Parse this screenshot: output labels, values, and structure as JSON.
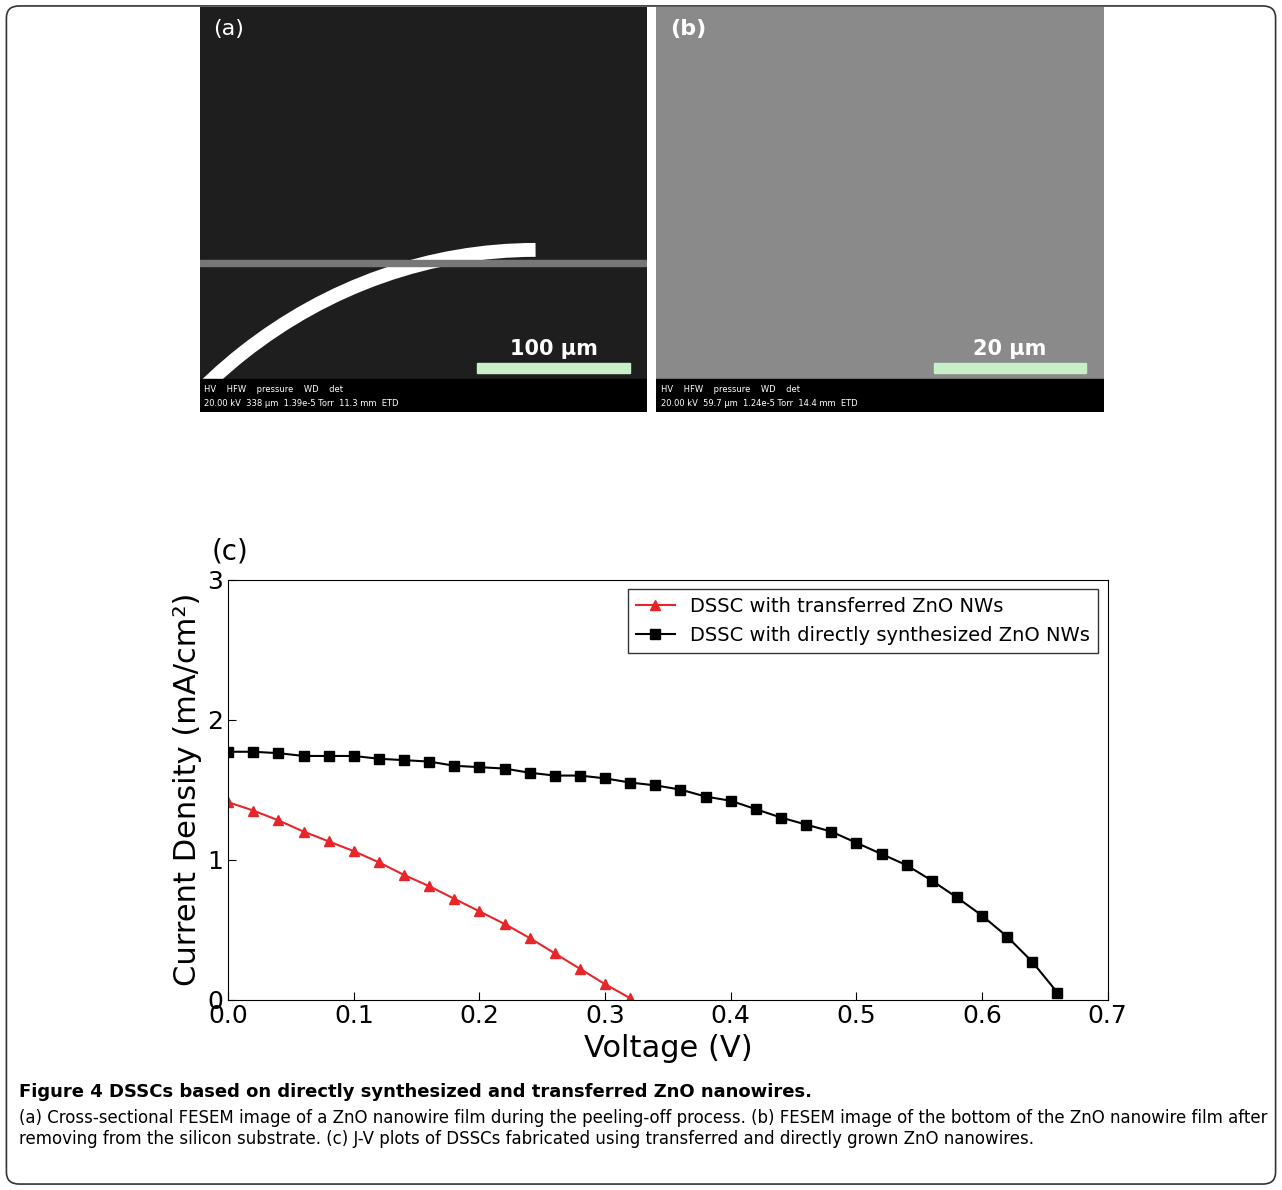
{
  "panels": [
    {
      "label": "(a)",
      "scale_bar": "100 µm",
      "info_header": "HV    HFW    pressure    WD    det",
      "info_values": "20.00 kV  338 µm  1.39e-5 Torr  11.3 mm  ETD"
    },
    {
      "label": "(b)",
      "scale_bar": "20 µm",
      "info_header": "HV    HFW    pressure    WD    det",
      "info_values": "20.00 kV  59.7 µm  1.24e-5 Torr  14.4 mm  ETD"
    }
  ],
  "chart_data": {
    "type": "line",
    "panel_label": "(c)",
    "x_label": "Voltage (V)",
    "y_label": "Current Density (mA/cm²)",
    "xlim": [
      0.0,
      0.7
    ],
    "xticks": [
      0.0,
      0.1,
      0.2,
      0.3,
      0.4,
      0.5,
      0.6,
      0.7
    ],
    "ylim": [
      0,
      3
    ],
    "yticks": [
      0,
      1,
      2,
      3
    ],
    "legend": "upper right",
    "grid": false,
    "series": [
      {
        "name": "DSSC with transferred ZnO NWs",
        "color": "#e8262a",
        "marker": "triangle",
        "x": [
          0.0,
          0.02,
          0.04,
          0.06,
          0.08,
          0.1,
          0.12,
          0.14,
          0.16,
          0.18,
          0.2,
          0.22,
          0.24,
          0.26,
          0.28,
          0.3,
          0.32
        ],
        "values": [
          1.41,
          1.35,
          1.28,
          1.2,
          1.13,
          1.06,
          0.98,
          0.89,
          0.81,
          0.72,
          0.63,
          0.54,
          0.44,
          0.33,
          0.22,
          0.11,
          0.01
        ]
      },
      {
        "name": "DSSC with directly synthesized ZnO NWs",
        "color": "#000000",
        "marker": "square",
        "x": [
          0.0,
          0.02,
          0.04,
          0.06,
          0.08,
          0.1,
          0.12,
          0.14,
          0.16,
          0.18,
          0.2,
          0.22,
          0.24,
          0.26,
          0.28,
          0.3,
          0.32,
          0.34,
          0.36,
          0.38,
          0.4,
          0.42,
          0.44,
          0.46,
          0.48,
          0.5,
          0.52,
          0.54,
          0.56,
          0.58,
          0.6,
          0.62,
          0.64,
          0.66
        ],
        "values": [
          1.77,
          1.77,
          1.76,
          1.74,
          1.74,
          1.74,
          1.72,
          1.71,
          1.7,
          1.67,
          1.66,
          1.65,
          1.62,
          1.6,
          1.6,
          1.58,
          1.55,
          1.53,
          1.5,
          1.45,
          1.42,
          1.36,
          1.3,
          1.25,
          1.2,
          1.12,
          1.04,
          0.96,
          0.85,
          0.73,
          0.6,
          0.45,
          0.27,
          0.05
        ]
      }
    ]
  },
  "caption": {
    "title": "Figure 4 DSSCs based on directly synthesized and transferred ZnO nanowires.",
    "text": "(a) Cross-sectional FESEM image of a ZnO nanowire film during the peeling-off process. (b) FESEM image of the bottom of the ZnO nanowire film after removing from the silicon substrate. (c) J-V plots of DSSCs fabricated using transferred and directly grown ZnO nanowires."
  }
}
